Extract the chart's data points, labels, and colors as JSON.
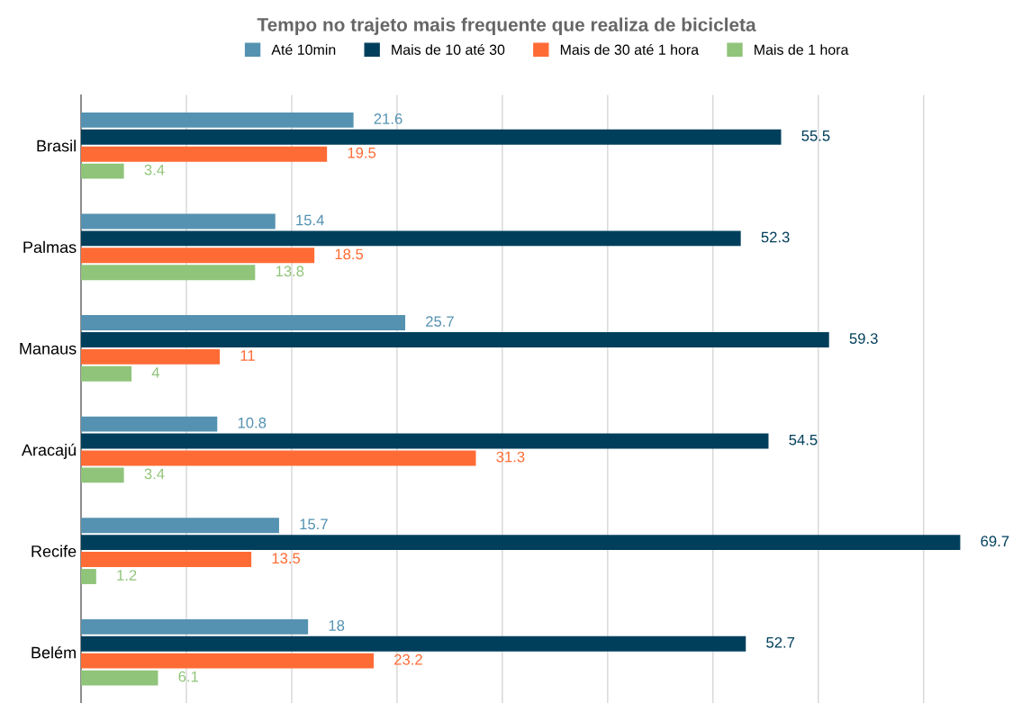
{
  "chart_data": {
    "type": "bar",
    "orientation": "horizontal",
    "title": "Tempo no trajeto mais frequente que realiza de bicicleta",
    "categories": [
      "Brasil",
      "Palmas",
      "Manaus",
      "Aracajú",
      "Recife",
      "Belém"
    ],
    "series": [
      {
        "name": "Até 10min",
        "color": "#5592b1",
        "values": [
          21.6,
          15.4,
          25.7,
          10.8,
          15.7,
          18
        ]
      },
      {
        "name": "Mais de 10 até 30",
        "color": "#003f5c",
        "values": [
          55.5,
          52.3,
          59.3,
          54.5,
          69.7,
          52.7
        ]
      },
      {
        "name": "Mais de 30 até 1 hora",
        "color": "#ff6b35",
        "values": [
          19.5,
          18.5,
          11,
          31.3,
          13.5,
          23.2
        ]
      },
      {
        "name": "Mais de 1 hora",
        "color": "#90c47a",
        "values": [
          3.4,
          13.8,
          4,
          3.4,
          1.2,
          6.1
        ]
      }
    ],
    "xticks": [
      {
        "value": 8.35,
        "label": null
      },
      {
        "value": 16.7,
        "label": null
      },
      {
        "value": 25.05,
        "label": null
      },
      {
        "value": 33.4,
        "label": null
      },
      {
        "value": 41.75,
        "label": null
      },
      {
        "value": 50.1,
        "label": null
      },
      {
        "value": 58.45,
        "label": null
      },
      {
        "value": 66.8,
        "label": null
      }
    ],
    "tick_labels": "y",
    "grid": "x",
    "legend": "top",
    "data_labels": true
  }
}
